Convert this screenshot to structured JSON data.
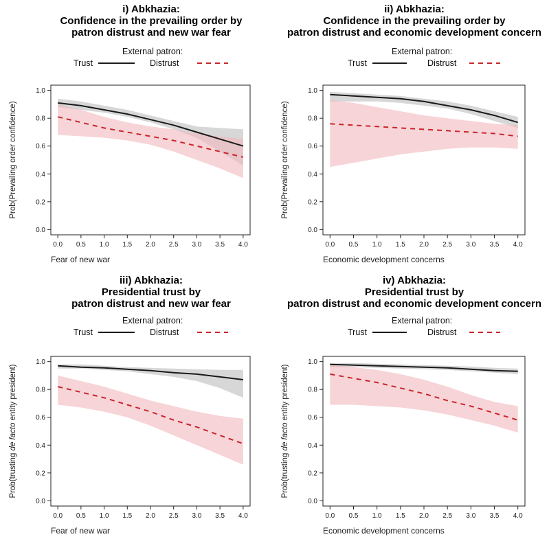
{
  "colors": {
    "trust": "#1a1a1a",
    "distrust": "#c8252b",
    "trust_band": "#bdbdbd",
    "distrust_band": "#f2b8bd"
  },
  "panels": [
    {
      "title_lines": [
        "i) Abkhazia:",
        "Confidence in the prevailing order by",
        "patron distrust and new war fear"
      ],
      "legend": {
        "title": "External patron:",
        "trust": "Trust",
        "distrust": "Distrust"
      },
      "ylabel_parts": [
        {
          "t": "Prob(Prevailing order confidence)",
          "italic": false
        }
      ],
      "chart_data": {
        "type": "line",
        "xlabel": "Fear of new war",
        "xlim": [
          0,
          4
        ],
        "ylim": [
          0,
          1
        ],
        "xticks": [
          "0.0",
          "0.5",
          "1.0",
          "1.5",
          "2.0",
          "2.5",
          "3.0",
          "3.5",
          "4.0"
        ],
        "yticks": [
          "0.0",
          "0.2",
          "0.4",
          "0.6",
          "0.8",
          "1.0"
        ],
        "x": [
          0,
          0.5,
          1,
          1.5,
          2,
          2.5,
          3,
          3.5,
          4
        ],
        "series": [
          {
            "name": "Trust",
            "style": "solid",
            "values": [
              0.91,
              0.89,
              0.86,
              0.83,
              0.79,
              0.75,
              0.7,
              0.65,
              0.6
            ],
            "lower": [
              0.88,
              0.86,
              0.84,
              0.81,
              0.77,
              0.72,
              0.66,
              0.56,
              0.46
            ],
            "upper": [
              0.94,
              0.92,
              0.89,
              0.86,
              0.82,
              0.78,
              0.74,
              0.73,
              0.72
            ]
          },
          {
            "name": "Distrust",
            "style": "dashed",
            "values": [
              0.81,
              0.77,
              0.73,
              0.7,
              0.67,
              0.64,
              0.6,
              0.56,
              0.52
            ],
            "lower": [
              0.68,
              0.67,
              0.66,
              0.64,
              0.61,
              0.56,
              0.5,
              0.44,
              0.37
            ],
            "upper": [
              0.9,
              0.86,
              0.81,
              0.77,
              0.74,
              0.72,
              0.69,
              0.67,
              0.65
            ]
          }
        ]
      }
    },
    {
      "title_lines": [
        "ii) Abkhazia:",
        "Confidence in the prevailing order by",
        "patron distrust and economic development concern"
      ],
      "legend": {
        "title": "External patron:",
        "trust": "Trust",
        "distrust": "Distrust"
      },
      "ylabel_parts": [
        {
          "t": "Prob(Prevailing order confidence)",
          "italic": false
        }
      ],
      "chart_data": {
        "type": "line",
        "xlabel": "Economic development concerns",
        "xlim": [
          0,
          4
        ],
        "ylim": [
          0,
          1
        ],
        "xticks": [
          "0.0",
          "0.5",
          "1.0",
          "1.5",
          "2.0",
          "2.5",
          "3.0",
          "3.5",
          "4.0"
        ],
        "yticks": [
          "0.0",
          "0.2",
          "0.4",
          "0.6",
          "0.8",
          "1.0"
        ],
        "x": [
          0,
          0.5,
          1,
          1.5,
          2,
          2.5,
          3,
          3.5,
          4
        ],
        "series": [
          {
            "name": "Trust",
            "style": "solid",
            "values": [
              0.97,
              0.96,
              0.95,
              0.94,
              0.92,
              0.89,
              0.86,
              0.82,
              0.77
            ],
            "lower": [
              0.92,
              0.92,
              0.92,
              0.91,
              0.89,
              0.87,
              0.83,
              0.78,
              0.73
            ],
            "upper": [
              0.99,
              0.98,
              0.97,
              0.96,
              0.94,
              0.92,
              0.89,
              0.85,
              0.81
            ]
          },
          {
            "name": "Distrust",
            "style": "dashed",
            "values": [
              0.76,
              0.75,
              0.74,
              0.73,
              0.72,
              0.71,
              0.7,
              0.69,
              0.67
            ],
            "lower": [
              0.45,
              0.48,
              0.51,
              0.54,
              0.56,
              0.58,
              0.59,
              0.59,
              0.58
            ],
            "upper": [
              0.93,
              0.91,
              0.88,
              0.85,
              0.82,
              0.8,
              0.78,
              0.76,
              0.75
            ]
          }
        ]
      }
    },
    {
      "title_lines": [
        "iii) Abkhazia:",
        "Presidential trust by",
        "patron distrust and new war fear"
      ],
      "legend": {
        "title": "External patron:",
        "trust": "Trust",
        "distrust": "Distrust"
      },
      "ylabel_parts": [
        {
          "t": "Prob(trusting ",
          "italic": false
        },
        {
          "t": "de facto",
          "italic": true
        },
        {
          "t": " entity president)",
          "italic": false
        }
      ],
      "chart_data": {
        "type": "line",
        "xlabel": "Fear of new war",
        "xlim": [
          0,
          4
        ],
        "ylim": [
          0,
          1
        ],
        "xticks": [
          "0.0",
          "0.5",
          "1.0",
          "1.5",
          "2.0",
          "2.5",
          "3.0",
          "3.5",
          "4.0"
        ],
        "yticks": [
          "0.0",
          "0.2",
          "0.4",
          "0.6",
          "0.8",
          "1.0"
        ],
        "x": [
          0,
          0.5,
          1,
          1.5,
          2,
          2.5,
          3,
          3.5,
          4
        ],
        "series": [
          {
            "name": "Trust",
            "style": "solid",
            "values": [
              0.97,
              0.96,
              0.955,
              0.945,
              0.935,
              0.92,
              0.91,
              0.89,
              0.87
            ],
            "lower": [
              0.95,
              0.95,
              0.94,
              0.93,
              0.91,
              0.89,
              0.86,
              0.81,
              0.74
            ],
            "upper": [
              0.98,
              0.98,
              0.97,
              0.96,
              0.955,
              0.95,
              0.945,
              0.94,
              0.94
            ]
          },
          {
            "name": "Distrust",
            "style": "dashed",
            "values": [
              0.82,
              0.78,
              0.74,
              0.69,
              0.64,
              0.58,
              0.53,
              0.47,
              0.41
            ],
            "lower": [
              0.69,
              0.67,
              0.64,
              0.6,
              0.54,
              0.47,
              0.4,
              0.33,
              0.26
            ],
            "upper": [
              0.9,
              0.86,
              0.82,
              0.77,
              0.72,
              0.68,
              0.64,
              0.61,
              0.59
            ]
          }
        ]
      }
    },
    {
      "title_lines": [
        "iv) Abkhazia:",
        "Presidential trust by",
        "patron distrust and economic development concern"
      ],
      "legend": {
        "title": "External patron:",
        "trust": "Trust",
        "distrust": "Distrust"
      },
      "ylabel_parts": [
        {
          "t": "Prob(trusting ",
          "italic": false
        },
        {
          "t": "de facto",
          "italic": true
        },
        {
          "t": " entity president)",
          "italic": false
        }
      ],
      "chart_data": {
        "type": "line",
        "xlabel": "Economic development concerns",
        "xlim": [
          0,
          4
        ],
        "ylim": [
          0,
          1
        ],
        "xticks": [
          "0.0",
          "0.5",
          "1.0",
          "1.5",
          "2.0",
          "2.5",
          "3.0",
          "3.5",
          "4.0"
        ],
        "yticks": [
          "0.0",
          "0.2",
          "0.4",
          "0.6",
          "0.8",
          "1.0"
        ],
        "x": [
          0,
          0.5,
          1,
          1.5,
          2,
          2.5,
          3,
          3.5,
          4
        ],
        "series": [
          {
            "name": "Trust",
            "style": "solid",
            "values": [
              0.98,
              0.975,
              0.97,
              0.965,
              0.96,
              0.955,
              0.945,
              0.935,
              0.93
            ],
            "lower": [
              0.96,
              0.96,
              0.955,
              0.95,
              0.945,
              0.94,
              0.93,
              0.92,
              0.91
            ],
            "upper": [
              0.99,
              0.99,
              0.985,
              0.98,
              0.975,
              0.97,
              0.965,
              0.955,
              0.95
            ]
          },
          {
            "name": "Distrust",
            "style": "dashed",
            "values": [
              0.91,
              0.88,
              0.85,
              0.81,
              0.77,
              0.72,
              0.68,
              0.63,
              0.58
            ],
            "lower": [
              0.69,
              0.69,
              0.68,
              0.67,
              0.65,
              0.62,
              0.58,
              0.54,
              0.49
            ],
            "upper": [
              0.98,
              0.96,
              0.94,
              0.91,
              0.87,
              0.82,
              0.76,
              0.71,
              0.68
            ]
          }
        ]
      }
    }
  ]
}
